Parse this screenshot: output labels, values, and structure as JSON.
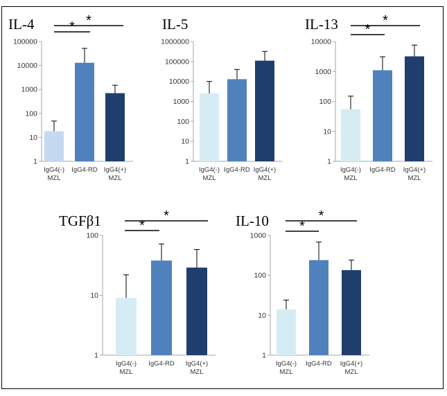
{
  "colors": {
    "bar1": "#d6ecf5",
    "bar1_il4": "#c5d9f1",
    "bar2": "#4f81bd",
    "bar3": "#1f3e6e",
    "axis": "#a6a6a6",
    "text": "#333333"
  },
  "chart_data": [
    {
      "type": "bar",
      "title": "IL-4",
      "yscale": "log",
      "ylim": [
        1,
        100000
      ],
      "yticks": [
        "1",
        "10",
        "100",
        "1000",
        "10000",
        "100000"
      ],
      "categories": [
        [
          "IgG4(-)",
          "MZL"
        ],
        [
          "IgG4-RD"
        ],
        [
          "IgG4(+)",
          "MZL"
        ]
      ],
      "values": [
        18,
        13000,
        700
      ],
      "error_upper": [
        48,
        52000,
        1500
      ],
      "significance": [
        {
          "from": 0,
          "to": 1,
          "label": "*"
        },
        {
          "from": 0,
          "to": 2,
          "label": "*"
        }
      ]
    },
    {
      "type": "bar",
      "title": "IL-5",
      "yscale": "log",
      "ylim": [
        1,
        1000000
      ],
      "yticks": [
        "1",
        "10",
        "100",
        "1000",
        "10000",
        "100000",
        "1000000"
      ],
      "categories": [
        [
          "IgG4(-)",
          "MZL"
        ],
        [
          "IgG4-RD"
        ],
        [
          "IgG4(+)",
          "MZL"
        ]
      ],
      "values": [
        2500,
        13000,
        110000
      ],
      "error_upper": [
        10000,
        40000,
        320000
      ],
      "significance": []
    },
    {
      "type": "bar",
      "title": "IL-13",
      "yscale": "log",
      "ylim": [
        1,
        10000
      ],
      "yticks": [
        "1",
        "10",
        "100",
        "1000",
        "10000"
      ],
      "categories": [
        [
          "IgG4(-)",
          "MZL"
        ],
        [
          "IgG4-RD"
        ],
        [
          "IgG4(+)",
          "MZL"
        ]
      ],
      "values": [
        55,
        1100,
        3200
      ],
      "error_upper": [
        150,
        3100,
        7600
      ],
      "significance": [
        {
          "from": 0,
          "to": 1,
          "label": "*"
        },
        {
          "from": 0,
          "to": 2,
          "label": "*"
        }
      ]
    },
    {
      "type": "bar",
      "title": "TGFβ1",
      "yscale": "log",
      "ylim": [
        1,
        100
      ],
      "yticks": [
        "1",
        "10",
        "100"
      ],
      "categories": [
        [
          "IgG4(-)",
          "MZL"
        ],
        [
          "IgG4-RD"
        ],
        [
          "IgG4(+)",
          "MZL"
        ]
      ],
      "values": [
        9,
        38,
        29
      ],
      "error_upper": [
        22,
        72,
        58
      ],
      "significance": [
        {
          "from": 0,
          "to": 1,
          "label": "*"
        },
        {
          "from": 0,
          "to": 2,
          "label": "*"
        }
      ]
    },
    {
      "type": "bar",
      "title": "IL-10",
      "yscale": "log",
      "ylim": [
        1,
        1000
      ],
      "yticks": [
        "1",
        "10",
        "100",
        "1000"
      ],
      "categories": [
        [
          "IgG4(-)",
          "MZL"
        ],
        [
          "IgG4-RD"
        ],
        [
          "IgG4(+)",
          "MZL"
        ]
      ],
      "values": [
        14,
        240,
        135
      ],
      "error_upper": [
        24,
        680,
        240
      ],
      "significance": [
        {
          "from": 0,
          "to": 1,
          "label": "*"
        },
        {
          "from": 0,
          "to": 2,
          "label": "*"
        }
      ]
    }
  ]
}
